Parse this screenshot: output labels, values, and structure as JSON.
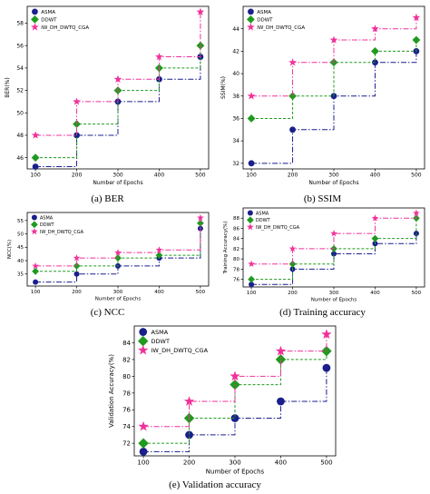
{
  "colors": {
    "ASMA": "#1a1f8c",
    "DDWT": "#1f9a1f",
    "IW_DH_DWTQ_CGA": "#f0319a"
  },
  "markers": {
    "ASMA": "circle",
    "DDWT": "diamond",
    "IW_DH_DWTQ_CGA": "star"
  },
  "chart_data": [
    {
      "caption": "(a) BER",
      "type": "step",
      "xlabel": "Number of Epochs",
      "ylabel": "BER(%)",
      "x": [
        100,
        200,
        300,
        400,
        500
      ],
      "xlim": [
        80,
        520
      ],
      "ylim": [
        45,
        59.5
      ],
      "yticks": [
        46,
        48,
        50,
        52,
        54,
        56,
        58
      ],
      "legend": "top-left",
      "grid": false,
      "series": [
        {
          "name": "ASMA",
          "values": [
            45.2,
            48,
            51,
            53,
            55
          ]
        },
        {
          "name": "DDWT",
          "values": [
            46,
            49,
            52,
            54,
            56
          ]
        },
        {
          "name": "IW_DH_DWTQ_CGA",
          "values": [
            48,
            51,
            53,
            55,
            59
          ]
        }
      ]
    },
    {
      "caption": "(b) SSIM",
      "type": "step",
      "xlabel": "Number of Epochs",
      "ylabel": "SSIM(%)",
      "x": [
        100,
        200,
        300,
        400,
        500
      ],
      "xlim": [
        80,
        520
      ],
      "ylim": [
        31.5,
        46
      ],
      "yticks": [
        32,
        34,
        36,
        38,
        40,
        42,
        44
      ],
      "legend": "top-left",
      "grid": false,
      "series": [
        {
          "name": "ASMA",
          "values": [
            32,
            35,
            38,
            41,
            42
          ]
        },
        {
          "name": "DDWT",
          "values": [
            36,
            38,
            41,
            42,
            43
          ]
        },
        {
          "name": "IW_DH_DWTQ_CGA",
          "values": [
            38,
            41,
            43,
            44,
            45
          ]
        }
      ]
    },
    {
      "caption": "(c) NCC",
      "type": "step",
      "xlabel": "Number of Epochs",
      "ylabel": "NCC(%)",
      "x": [
        100,
        200,
        300,
        400,
        500
      ],
      "xlim": [
        80,
        520
      ],
      "ylim": [
        30.5,
        58
      ],
      "yticks": [
        35,
        40,
        45,
        50,
        55
      ],
      "legend": "top-left",
      "grid": false,
      "series": [
        {
          "name": "ASMA",
          "values": [
            32,
            35,
            38,
            41,
            52
          ]
        },
        {
          "name": "DDWT",
          "values": [
            36,
            38,
            41,
            42,
            54
          ]
        },
        {
          "name": "IW_DH_DWTQ_CGA",
          "values": [
            38,
            41,
            43,
            44,
            56
          ]
        }
      ]
    },
    {
      "caption": "(d) Training accuracy",
      "type": "step",
      "xlabel": "Number of Epochs",
      "ylabel": "Training Accuracy(%)",
      "x": [
        100,
        200,
        300,
        400,
        500
      ],
      "xlim": [
        80,
        520
      ],
      "ylim": [
        74.5,
        90
      ],
      "yticks": [
        76,
        78,
        80,
        82,
        84,
        86,
        88
      ],
      "legend": "top-left",
      "grid": false,
      "series": [
        {
          "name": "ASMA",
          "values": [
            75,
            78,
            81,
            83,
            85
          ]
        },
        {
          "name": "DDWT",
          "values": [
            76,
            79,
            82,
            84,
            88
          ]
        },
        {
          "name": "IW_DH_DWTQ_CGA",
          "values": [
            79,
            82,
            85,
            88,
            89
          ]
        }
      ]
    },
    {
      "caption": "(e) Validation accuracy",
      "type": "step",
      "xlabel": "Number of Epochs",
      "ylabel": "Validation Accuracy(%)",
      "x": [
        100,
        200,
        300,
        400,
        500
      ],
      "xlim": [
        80,
        520
      ],
      "ylim": [
        70.5,
        86
      ],
      "yticks": [
        72,
        74,
        76,
        78,
        80,
        82,
        84
      ],
      "legend": "top-left",
      "grid": false,
      "series": [
        {
          "name": "ASMA",
          "values": [
            71,
            73,
            75,
            77,
            81
          ]
        },
        {
          "name": "DDWT",
          "values": [
            72,
            75,
            79,
            82,
            83
          ]
        },
        {
          "name": "IW_DH_DWTQ_CGA",
          "values": [
            74,
            77,
            80,
            83,
            85
          ]
        }
      ]
    }
  ]
}
